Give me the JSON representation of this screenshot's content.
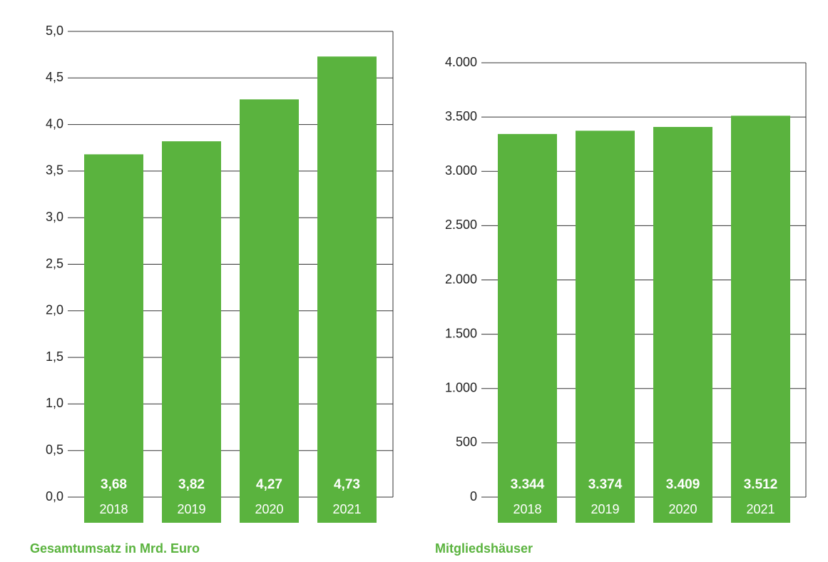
{
  "chart_data": [
    {
      "type": "bar",
      "title": "Gesamtumsatz in Mrd. Euro",
      "categories": [
        "2018",
        "2019",
        "2020",
        "2021"
      ],
      "values": [
        3.68,
        3.82,
        4.27,
        4.73
      ],
      "value_labels": [
        "3,68",
        "3,82",
        "4,27",
        "4,73"
      ],
      "color": "#5ab33e",
      "ylim": [
        0,
        5
      ],
      "yticks": [
        {
          "value": 0,
          "label": "0,0"
        },
        {
          "value": 0.5,
          "label": "0,5"
        },
        {
          "value": 1,
          "label": "1,0"
        },
        {
          "value": 1.5,
          "label": "1,5"
        },
        {
          "value": 2,
          "label": "2,0"
        },
        {
          "value": 2.5,
          "label": "2,5"
        },
        {
          "value": 3,
          "label": "3,0"
        },
        {
          "value": 3.5,
          "label": "3,5"
        },
        {
          "value": 4,
          "label": "4,0"
        },
        {
          "value": 4.5,
          "label": "4,5"
        },
        {
          "value": 5,
          "label": "5,0"
        }
      ],
      "grid": true
    },
    {
      "type": "bar",
      "title": "Mitgliedshäuser",
      "categories": [
        "2018",
        "2019",
        "2020",
        "2021"
      ],
      "values": [
        3344,
        3374,
        3409,
        3512
      ],
      "value_labels": [
        "3.344",
        "3.374",
        "3.409",
        "3.512"
      ],
      "color": "#5ab33e",
      "ylim": [
        0,
        4000
      ],
      "yticks": [
        0,
        500,
        {
          "value": 1000,
          "label": "1.000"
        },
        {
          "value": 1500,
          "label": "1.500"
        },
        {
          "value": 2000,
          "label": "2.000"
        },
        {
          "value": 2500,
          "label": "2.500"
        },
        {
          "value": 3000,
          "label": "3.000"
        },
        {
          "value": 3500,
          "label": "3.500"
        },
        {
          "value": 4000,
          "label": "4.000"
        }
      ],
      "grid": true
    }
  ]
}
